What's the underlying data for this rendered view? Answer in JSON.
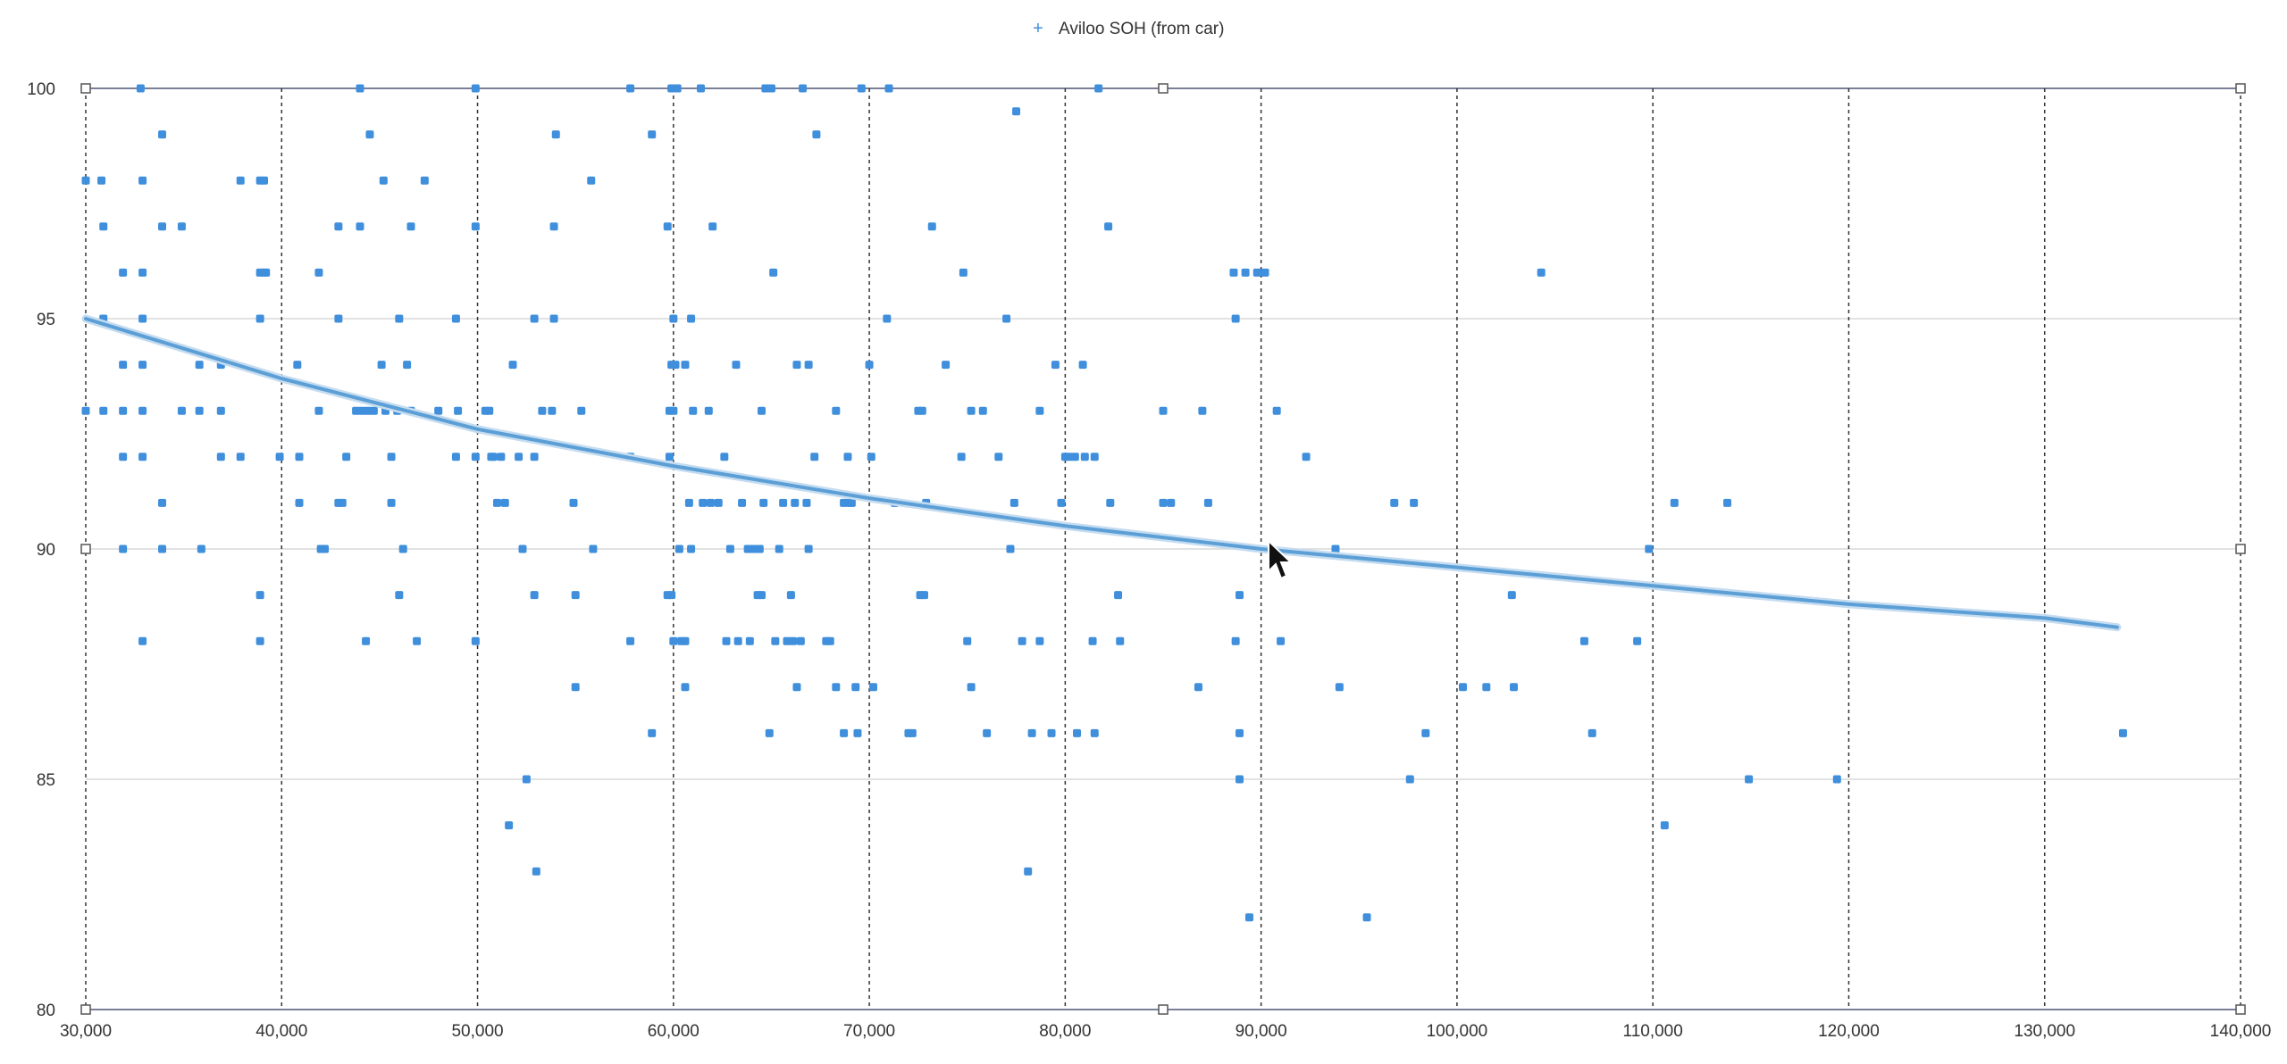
{
  "chart_data": {
    "type": "scatter",
    "legend": {
      "label": "Aviloo SOH (from car)",
      "position": "top-center",
      "marker": "+"
    },
    "xlim": [
      30000,
      140000
    ],
    "ylim": [
      80,
      100
    ],
    "x_ticks": [
      30000,
      40000,
      50000,
      60000,
      70000,
      80000,
      90000,
      100000,
      110000,
      120000,
      130000,
      140000
    ],
    "x_tick_labels": [
      "30,000",
      "40,000",
      "50,000",
      "60,000",
      "70,000",
      "80,000",
      "90,000",
      "100,000",
      "110,000",
      "120,000",
      "130,000",
      "140,000"
    ],
    "y_ticks": [
      80,
      85,
      90,
      95,
      100
    ],
    "y_tick_labels": [
      "80",
      "85",
      "90",
      "95",
      "100"
    ],
    "grid": {
      "vertical": "dashed",
      "horizontal": "solid-light"
    },
    "colors": {
      "points": "#3f8fdc",
      "trendline": "#5b9fd6",
      "grid": "#333333"
    },
    "series": [
      {
        "name": "Aviloo SOH (from car)",
        "points": [
          [
            30000,
            98
          ],
          [
            30000,
            93
          ],
          [
            30800,
            98
          ],
          [
            30900,
            97
          ],
          [
            30900,
            95
          ],
          [
            30900,
            93
          ],
          [
            31900,
            96
          ],
          [
            31900,
            94
          ],
          [
            31900,
            93
          ],
          [
            31900,
            92
          ],
          [
            31900,
            90
          ],
          [
            32800,
            100
          ],
          [
            32900,
            98
          ],
          [
            32900,
            96
          ],
          [
            32900,
            95
          ],
          [
            32900,
            94
          ],
          [
            32900,
            93
          ],
          [
            32900,
            92
          ],
          [
            32900,
            88
          ],
          [
            33900,
            99
          ],
          [
            33900,
            97
          ],
          [
            33900,
            91
          ],
          [
            33900,
            90
          ],
          [
            34900,
            97
          ],
          [
            34900,
            93
          ],
          [
            35800,
            94
          ],
          [
            35800,
            93
          ],
          [
            35900,
            90
          ],
          [
            36900,
            94
          ],
          [
            36900,
            93
          ],
          [
            36900,
            92
          ],
          [
            37900,
            98
          ],
          [
            37900,
            92
          ],
          [
            38900,
            98
          ],
          [
            38900,
            96
          ],
          [
            38900,
            95
          ],
          [
            38900,
            89
          ],
          [
            38900,
            88
          ],
          [
            39100,
            98
          ],
          [
            39100,
            96
          ],
          [
            39200,
            96
          ],
          [
            39900,
            92
          ],
          [
            40800,
            94
          ],
          [
            40900,
            92
          ],
          [
            40900,
            91
          ],
          [
            41900,
            96
          ],
          [
            41900,
            93
          ],
          [
            42000,
            90
          ],
          [
            42200,
            90
          ],
          [
            42900,
            97
          ],
          [
            42900,
            95
          ],
          [
            42900,
            91
          ],
          [
            43100,
            91
          ],
          [
            43300,
            92
          ],
          [
            43800,
            93
          ],
          [
            44000,
            100
          ],
          [
            44100,
            93
          ],
          [
            44000,
            97
          ],
          [
            44300,
            88
          ],
          [
            44400,
            93
          ],
          [
            44500,
            99
          ],
          [
            44700,
            93
          ],
          [
            45100,
            94
          ],
          [
            45200,
            98
          ],
          [
            45300,
            93
          ],
          [
            45600,
            92
          ],
          [
            45600,
            91
          ],
          [
            45900,
            93
          ],
          [
            46000,
            95
          ],
          [
            46000,
            89
          ],
          [
            46200,
            90
          ],
          [
            46400,
            94
          ],
          [
            46600,
            97
          ],
          [
            46600,
            93
          ],
          [
            46900,
            88
          ],
          [
            47300,
            98
          ],
          [
            48000,
            93
          ],
          [
            48900,
            95
          ],
          [
            48900,
            92
          ],
          [
            49000,
            93
          ],
          [
            49900,
            100
          ],
          [
            49900,
            97
          ],
          [
            49900,
            92
          ],
          [
            49900,
            88
          ],
          [
            50400,
            93
          ],
          [
            50600,
            93
          ],
          [
            50700,
            92
          ],
          [
            50800,
            92
          ],
          [
            51000,
            91
          ],
          [
            51200,
            92
          ],
          [
            51400,
            91
          ],
          [
            51600,
            84
          ],
          [
            51800,
            94
          ],
          [
            52100,
            92
          ],
          [
            52300,
            90
          ],
          [
            52500,
            85
          ],
          [
            52900,
            95
          ],
          [
            52900,
            92
          ],
          [
            52900,
            89
          ],
          [
            53000,
            83
          ],
          [
            53300,
            93
          ],
          [
            53800,
            93
          ],
          [
            53900,
            97
          ],
          [
            53900,
            95
          ],
          [
            54000,
            99
          ],
          [
            54900,
            91
          ],
          [
            55000,
            89
          ],
          [
            55000,
            87
          ],
          [
            55300,
            93
          ],
          [
            55800,
            98
          ],
          [
            55900,
            90
          ],
          [
            57800,
            100
          ],
          [
            57800,
            92
          ],
          [
            57800,
            88
          ],
          [
            58900,
            99
          ],
          [
            58900,
            86
          ],
          [
            59700,
            97
          ],
          [
            59700,
            89
          ],
          [
            59800,
            93
          ],
          [
            59800,
            92
          ],
          [
            59900,
            100
          ],
          [
            59900,
            94
          ],
          [
            59900,
            89
          ],
          [
            60000,
            95
          ],
          [
            60000,
            93
          ],
          [
            60000,
            88
          ],
          [
            60100,
            100
          ],
          [
            60100,
            94
          ],
          [
            60200,
            100
          ],
          [
            60300,
            90
          ],
          [
            60400,
            88
          ],
          [
            60600,
            94
          ],
          [
            60600,
            88
          ],
          [
            60600,
            87
          ],
          [
            60800,
            91
          ],
          [
            60900,
            95
          ],
          [
            60900,
            90
          ],
          [
            61000,
            93
          ],
          [
            61400,
            100
          ],
          [
            61500,
            91
          ],
          [
            61800,
            93
          ],
          [
            61900,
            91
          ],
          [
            62000,
            97
          ],
          [
            62300,
            91
          ],
          [
            62600,
            92
          ],
          [
            62700,
            88
          ],
          [
            62900,
            90
          ],
          [
            63200,
            94
          ],
          [
            63300,
            88
          ],
          [
            63500,
            91
          ],
          [
            63800,
            90
          ],
          [
            63900,
            88
          ],
          [
            64100,
            90
          ],
          [
            64300,
            89
          ],
          [
            64400,
            90
          ],
          [
            64500,
            89
          ],
          [
            64500,
            93
          ],
          [
            64600,
            91
          ],
          [
            64700,
            100
          ],
          [
            64900,
            86
          ],
          [
            65000,
            100
          ],
          [
            65100,
            96
          ],
          [
            65200,
            88
          ],
          [
            65400,
            90
          ],
          [
            65600,
            91
          ],
          [
            65800,
            88
          ],
          [
            66000,
            89
          ],
          [
            66100,
            88
          ],
          [
            66200,
            91
          ],
          [
            66300,
            94
          ],
          [
            66300,
            87
          ],
          [
            66500,
            88
          ],
          [
            66600,
            100
          ],
          [
            66800,
            91
          ],
          [
            66900,
            94
          ],
          [
            66900,
            90
          ],
          [
            67200,
            92
          ],
          [
            67300,
            99
          ],
          [
            67800,
            88
          ],
          [
            68000,
            88
          ],
          [
            68300,
            93
          ],
          [
            68300,
            87
          ],
          [
            68700,
            91
          ],
          [
            68700,
            86
          ],
          [
            68900,
            92
          ],
          [
            69000,
            91
          ],
          [
            69100,
            91
          ],
          [
            69300,
            87
          ],
          [
            69400,
            86
          ],
          [
            69600,
            100
          ],
          [
            70000,
            94
          ],
          [
            70100,
            92
          ],
          [
            70200,
            87
          ],
          [
            70900,
            95
          ],
          [
            71000,
            100
          ],
          [
            71300,
            91
          ],
          [
            72000,
            86
          ],
          [
            72200,
            86
          ],
          [
            72500,
            93
          ],
          [
            72600,
            89
          ],
          [
            72700,
            93
          ],
          [
            72800,
            89
          ],
          [
            72900,
            91
          ],
          [
            73200,
            97
          ],
          [
            73900,
            94
          ],
          [
            74700,
            92
          ],
          [
            74800,
            96
          ],
          [
            75000,
            88
          ],
          [
            75200,
            87
          ],
          [
            75200,
            93
          ],
          [
            75800,
            93
          ],
          [
            76000,
            86
          ],
          [
            76600,
            92
          ],
          [
            77000,
            95
          ],
          [
            77200,
            90
          ],
          [
            77400,
            91
          ],
          [
            77500,
            99.5
          ],
          [
            77800,
            88
          ],
          [
            78100,
            83
          ],
          [
            78300,
            86
          ],
          [
            78700,
            88
          ],
          [
            78700,
            93
          ],
          [
            79300,
            86
          ],
          [
            79500,
            94
          ],
          [
            79800,
            91
          ],
          [
            80000,
            92
          ],
          [
            80200,
            92
          ],
          [
            80500,
            92
          ],
          [
            80600,
            86
          ],
          [
            80900,
            94
          ],
          [
            81000,
            92
          ],
          [
            81400,
            88
          ],
          [
            81500,
            92
          ],
          [
            81500,
            86
          ],
          [
            81700,
            100
          ],
          [
            82200,
            97
          ],
          [
            82300,
            91
          ],
          [
            82700,
            89
          ],
          [
            82800,
            88
          ],
          [
            85000,
            93
          ],
          [
            85000,
            91
          ],
          [
            85400,
            91
          ],
          [
            86800,
            87
          ],
          [
            87000,
            93
          ],
          [
            87300,
            91
          ],
          [
            88600,
            96
          ],
          [
            88700,
            95
          ],
          [
            88700,
            88
          ],
          [
            88900,
            89
          ],
          [
            88900,
            86
          ],
          [
            88900,
            85
          ],
          [
            89200,
            96
          ],
          [
            89400,
            82
          ],
          [
            89800,
            96
          ],
          [
            90200,
            96
          ],
          [
            90800,
            93
          ],
          [
            91000,
            88
          ],
          [
            92300,
            92
          ],
          [
            93800,
            90
          ],
          [
            94000,
            87
          ],
          [
            95400,
            82
          ],
          [
            96800,
            91
          ],
          [
            97600,
            85
          ],
          [
            97800,
            91
          ],
          [
            98400,
            86
          ],
          [
            100300,
            87
          ],
          [
            101500,
            87
          ],
          [
            102800,
            89
          ],
          [
            102900,
            87
          ],
          [
            104300,
            96
          ],
          [
            106500,
            88
          ],
          [
            106900,
            86
          ],
          [
            109200,
            88
          ],
          [
            109800,
            90
          ],
          [
            110600,
            84
          ],
          [
            111100,
            91
          ],
          [
            113800,
            91
          ],
          [
            114900,
            85
          ],
          [
            119400,
            85
          ],
          [
            134000,
            86
          ]
        ]
      }
    ],
    "trendline": {
      "type": "logarithmic",
      "x": [
        30000,
        40000,
        50000,
        60000,
        70000,
        80000,
        90000,
        100000,
        110000,
        120000,
        130000,
        133700
      ],
      "y": [
        95.0,
        93.7,
        92.6,
        91.8,
        91.1,
        90.5,
        90.0,
        89.6,
        89.2,
        88.8,
        88.5,
        88.3
      ]
    }
  }
}
